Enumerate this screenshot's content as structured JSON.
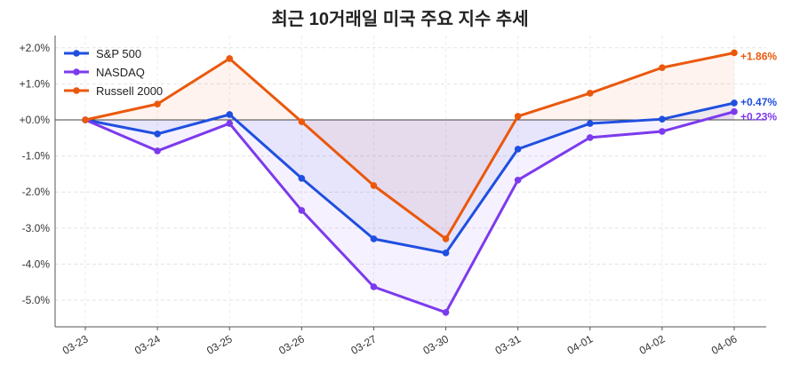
{
  "chart_data": {
    "type": "line",
    "title": "최근 10거래일 미국 주요 지수 추세",
    "xlabel": "",
    "ylabel": "",
    "categories": [
      "03-23",
      "03-24",
      "03-25",
      "03-26",
      "03-27",
      "03-30",
      "03-31",
      "04-01",
      "04-02",
      "04-06"
    ],
    "ylim": [
      -5.6,
      2.3
    ],
    "yticks": [
      2,
      1,
      0,
      -1,
      -2,
      -3,
      -4,
      -5
    ],
    "ytick_labels": [
      "+2.0%",
      "+1.0%",
      "+0.0%",
      "-1.0%",
      "-2.0%",
      "-3.0%",
      "-4.0%",
      "-5.0%"
    ],
    "grid": true,
    "legend_position": "top-left",
    "series": [
      {
        "name": "S&P 500",
        "color": "#1f4fe0",
        "values": [
          0,
          -0.39,
          0.15,
          -1.62,
          -3.3,
          -3.69,
          -0.81,
          -0.1,
          0.02,
          0.47
        ],
        "end_label": "+0.47%"
      },
      {
        "name": "NASDAQ",
        "color": "#7c3aed",
        "values": [
          0,
          -0.86,
          -0.1,
          -2.51,
          -4.63,
          -5.34,
          -1.67,
          -0.49,
          -0.32,
          0.23
        ],
        "end_label": "+0.23%"
      },
      {
        "name": "Russell 2000",
        "color": "#ea580c",
        "values": [
          0,
          0.44,
          1.7,
          -0.05,
          -1.82,
          -3.3,
          0.1,
          0.74,
          1.45,
          1.86
        ],
        "end_label": "+1.86%"
      }
    ]
  }
}
